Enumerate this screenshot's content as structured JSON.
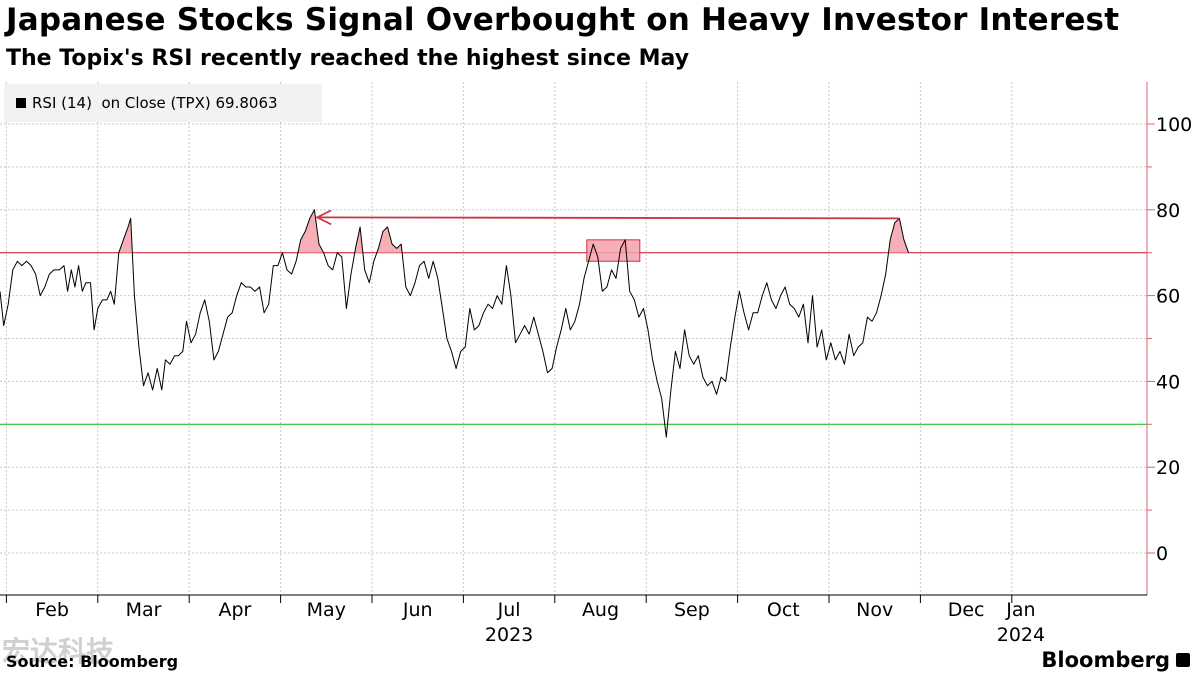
{
  "header": {
    "title": "Japanese Stocks Signal Overbought on Heavy Investor Interest",
    "subtitle": "The Topix's RSI recently reached the highest since May"
  },
  "legend": {
    "label": "RSI (14)  on Close (TPX) 69.8063",
    "color": "#000000"
  },
  "footer": {
    "source": "Source: Bloomberg",
    "brand": "Bloomberg",
    "watermark": "宏达科技"
  },
  "colors": {
    "line": "#000000",
    "overbought": "#cc3344",
    "oversold": "#33bb33",
    "highlight_fill": "#f4a0aa",
    "axis": "#e06070"
  },
  "chart_data": {
    "type": "line",
    "x_unit": "month (2023-01-01 = 0, 2024-01-01 = 12)",
    "ylim": [
      -10,
      110
    ],
    "yticks": [
      0,
      20,
      40,
      60,
      80,
      100
    ],
    "overbought_level": 70,
    "oversold_level": 30,
    "month_labels": [
      "Feb",
      "Mar",
      "Apr",
      "May",
      "Jun",
      "Jul",
      "Aug",
      "Sep",
      "Oct",
      "Nov",
      "Dec",
      "Jan"
    ],
    "month_label_positions": [
      1.5,
      2.5,
      3.5,
      4.5,
      5.5,
      6.5,
      7.5,
      8.5,
      9.5,
      10.5,
      11.5,
      12.1
    ],
    "year_labels": [
      {
        "label": "2023",
        "pos": 6.5
      },
      {
        "label": "2024",
        "pos": 12.1
      }
    ],
    "series": [
      {
        "values": [
          [
            0.93,
            61
          ],
          [
            0.97,
            53
          ],
          [
            1.02,
            58
          ],
          [
            1.07,
            66
          ],
          [
            1.12,
            68
          ],
          [
            1.17,
            67
          ],
          [
            1.22,
            68
          ],
          [
            1.27,
            67
          ],
          [
            1.32,
            65
          ],
          [
            1.37,
            60
          ],
          [
            1.42,
            62
          ],
          [
            1.47,
            65
          ],
          [
            1.52,
            66
          ],
          [
            1.58,
            66
          ],
          [
            1.63,
            67
          ],
          [
            1.67,
            61
          ],
          [
            1.71,
            66
          ],
          [
            1.75,
            62
          ],
          [
            1.79,
            67
          ],
          [
            1.83,
            61
          ],
          [
            1.87,
            63
          ],
          [
            1.92,
            63
          ],
          [
            1.96,
            52
          ],
          [
            2.0,
            57
          ],
          [
            2.05,
            59
          ],
          [
            2.1,
            59
          ],
          [
            2.14,
            61
          ],
          [
            2.18,
            58
          ],
          [
            2.23,
            70
          ],
          [
            2.28,
            73
          ],
          [
            2.33,
            76
          ],
          [
            2.36,
            78
          ],
          [
            2.4,
            60
          ],
          [
            2.45,
            48
          ],
          [
            2.5,
            39
          ],
          [
            2.55,
            42
          ],
          [
            2.6,
            38
          ],
          [
            2.65,
            43
          ],
          [
            2.7,
            38
          ],
          [
            2.74,
            45
          ],
          [
            2.79,
            44
          ],
          [
            2.84,
            46
          ],
          [
            2.88,
            46
          ],
          [
            2.93,
            47
          ],
          [
            2.97,
            54
          ],
          [
            3.02,
            49
          ],
          [
            3.07,
            51
          ],
          [
            3.12,
            56
          ],
          [
            3.17,
            59
          ],
          [
            3.22,
            54
          ],
          [
            3.27,
            45
          ],
          [
            3.32,
            47
          ],
          [
            3.37,
            51
          ],
          [
            3.42,
            55
          ],
          [
            3.47,
            56
          ],
          [
            3.52,
            60
          ],
          [
            3.57,
            63
          ],
          [
            3.62,
            62
          ],
          [
            3.67,
            62
          ],
          [
            3.72,
            61
          ],
          [
            3.77,
            62
          ],
          [
            3.82,
            56
          ],
          [
            3.87,
            58
          ],
          [
            3.92,
            67
          ],
          [
            3.97,
            67
          ],
          [
            4.02,
            70
          ],
          [
            4.07,
            66
          ],
          [
            4.12,
            65
          ],
          [
            4.17,
            68
          ],
          [
            4.22,
            73
          ],
          [
            4.27,
            75
          ],
          [
            4.32,
            78
          ],
          [
            4.37,
            80
          ],
          [
            4.42,
            72
          ],
          [
            4.47,
            70
          ],
          [
            4.52,
            67
          ],
          [
            4.57,
            66
          ],
          [
            4.62,
            70
          ],
          [
            4.67,
            69
          ],
          [
            4.72,
            57
          ],
          [
            4.77,
            65
          ],
          [
            4.82,
            71
          ],
          [
            4.87,
            76
          ],
          [
            4.92,
            66
          ],
          [
            4.97,
            63
          ],
          [
            5.02,
            68
          ],
          [
            5.07,
            71
          ],
          [
            5.12,
            75
          ],
          [
            5.17,
            76
          ],
          [
            5.22,
            72
          ],
          [
            5.27,
            71
          ],
          [
            5.32,
            72
          ],
          [
            5.37,
            62
          ],
          [
            5.42,
            60
          ],
          [
            5.47,
            63
          ],
          [
            5.52,
            67
          ],
          [
            5.57,
            68
          ],
          [
            5.62,
            64
          ],
          [
            5.67,
            68
          ],
          [
            5.72,
            64
          ],
          [
            5.77,
            57
          ],
          [
            5.82,
            50
          ],
          [
            5.87,
            47
          ],
          [
            5.92,
            43
          ],
          [
            5.97,
            47
          ],
          [
            6.02,
            48
          ],
          [
            6.07,
            57
          ],
          [
            6.12,
            52
          ],
          [
            6.17,
            53
          ],
          [
            6.22,
            56
          ],
          [
            6.27,
            58
          ],
          [
            6.32,
            57
          ],
          [
            6.37,
            60
          ],
          [
            6.42,
            58
          ],
          [
            6.47,
            67
          ],
          [
            6.52,
            60
          ],
          [
            6.57,
            49
          ],
          [
            6.62,
            51
          ],
          [
            6.67,
            53
          ],
          [
            6.72,
            51
          ],
          [
            6.77,
            55
          ],
          [
            6.82,
            51
          ],
          [
            6.87,
            47
          ],
          [
            6.92,
            42
          ],
          [
            6.97,
            43
          ],
          [
            7.02,
            48
          ],
          [
            7.07,
            52
          ],
          [
            7.12,
            57
          ],
          [
            7.17,
            52
          ],
          [
            7.22,
            54
          ],
          [
            7.27,
            58
          ],
          [
            7.32,
            64
          ],
          [
            7.37,
            68
          ],
          [
            7.42,
            72
          ],
          [
            7.47,
            69
          ],
          [
            7.52,
            61
          ],
          [
            7.57,
            62
          ],
          [
            7.62,
            66
          ],
          [
            7.67,
            64
          ],
          [
            7.72,
            71
          ],
          [
            7.77,
            73
          ],
          [
            7.82,
            61
          ],
          [
            7.87,
            59
          ],
          [
            7.92,
            55
          ],
          [
            7.97,
            57
          ],
          [
            8.02,
            52
          ],
          [
            8.07,
            45
          ],
          [
            8.12,
            40
          ],
          [
            8.17,
            36
          ],
          [
            8.22,
            27
          ],
          [
            8.27,
            38
          ],
          [
            8.32,
            47
          ],
          [
            8.37,
            43
          ],
          [
            8.42,
            52
          ],
          [
            8.47,
            46
          ],
          [
            8.52,
            44
          ],
          [
            8.57,
            46
          ],
          [
            8.62,
            41
          ],
          [
            8.67,
            39
          ],
          [
            8.72,
            40
          ],
          [
            8.77,
            37
          ],
          [
            8.82,
            41
          ],
          [
            8.87,
            40
          ],
          [
            8.92,
            48
          ],
          [
            8.97,
            55
          ],
          [
            9.02,
            61
          ],
          [
            9.07,
            56
          ],
          [
            9.12,
            52
          ],
          [
            9.17,
            56
          ],
          [
            9.22,
            56
          ],
          [
            9.27,
            60
          ],
          [
            9.32,
            63
          ],
          [
            9.37,
            59
          ],
          [
            9.42,
            57
          ],
          [
            9.47,
            60
          ],
          [
            9.52,
            62
          ],
          [
            9.57,
            58
          ],
          [
            9.62,
            57
          ],
          [
            9.67,
            55
          ],
          [
            9.72,
            58
          ],
          [
            9.77,
            49
          ],
          [
            9.82,
            60
          ],
          [
            9.87,
            48
          ],
          [
            9.92,
            52
          ],
          [
            9.97,
            45
          ],
          [
            10.02,
            49
          ],
          [
            10.07,
            45
          ],
          [
            10.12,
            47
          ],
          [
            10.17,
            44
          ],
          [
            10.22,
            51
          ],
          [
            10.27,
            46
          ],
          [
            10.32,
            48
          ],
          [
            10.37,
            49
          ],
          [
            10.42,
            55
          ],
          [
            10.47,
            54
          ],
          [
            10.52,
            56
          ],
          [
            10.57,
            60
          ],
          [
            10.62,
            65
          ],
          [
            10.67,
            73
          ],
          [
            10.72,
            77
          ],
          [
            10.77,
            78
          ],
          [
            10.82,
            73
          ],
          [
            10.87,
            70
          ]
        ]
      }
    ],
    "annotations": {
      "arrow_value": 78,
      "arrow_from": 10.77,
      "arrow_to": 4.4,
      "box": {
        "x_from": 7.35,
        "x_to": 7.93,
        "y_from": 68,
        "y_to": 73
      }
    }
  }
}
